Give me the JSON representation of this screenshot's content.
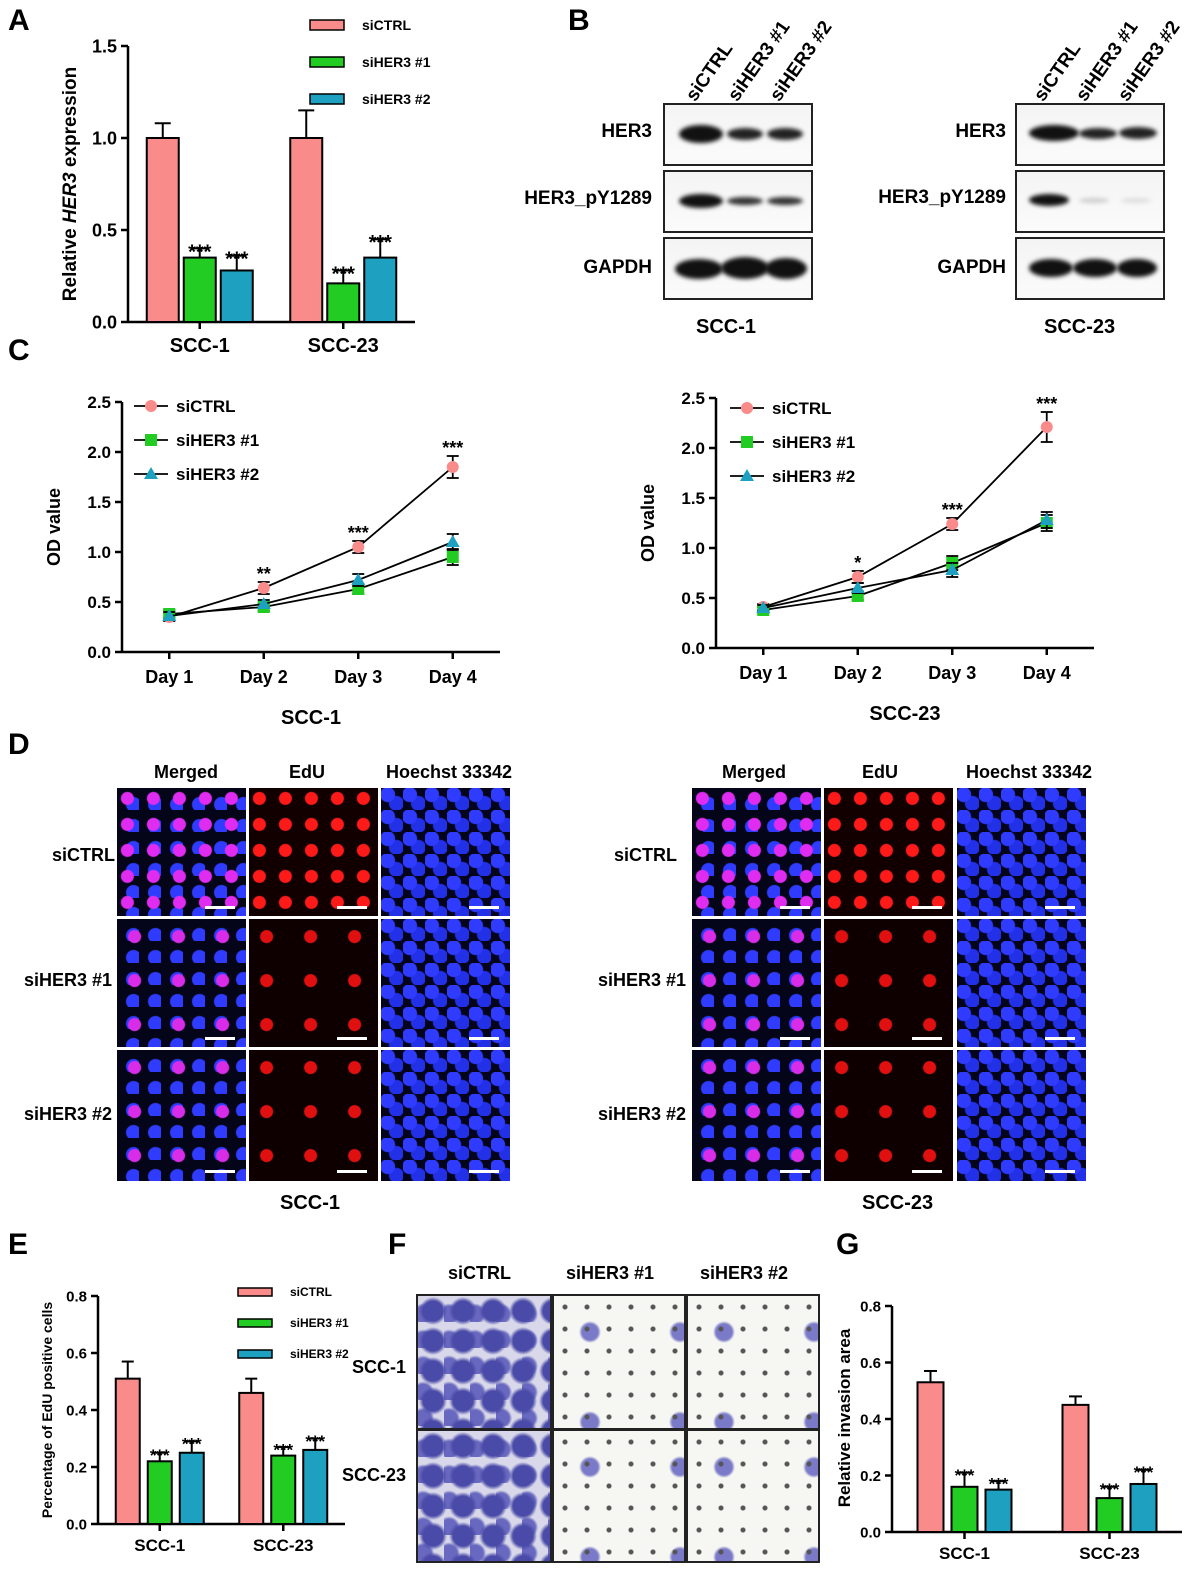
{
  "panels": {
    "a": "A",
    "b": "B",
    "c": "C",
    "d": "D",
    "e": "E",
    "f": "F",
    "g": "G"
  },
  "legend": {
    "ctrl": "siCTRL",
    "si1": "siHER3 #1",
    "si2": "siHER3 #2"
  },
  "colors": {
    "ctrl": "#f98b8b",
    "si1": "#22cc22",
    "si2": "#1ea0c0"
  },
  "chart_a": {
    "type": "bar",
    "ylabel_prefix": "Relative ",
    "ylabel_italic": "HER3",
    "ylabel_suffix": " expression",
    "categories": [
      "SCC-1",
      "SCC-23"
    ],
    "yticks": [
      "0.0",
      "0.5",
      "1.0",
      "1.5"
    ],
    "ylim": [
      0,
      1.5
    ],
    "series": [
      {
        "name": "siCTRL",
        "values": [
          1.0,
          1.0
        ],
        "errors": [
          0.08,
          0.15
        ]
      },
      {
        "name": "siHER3 #1",
        "values": [
          0.35,
          0.21
        ],
        "errors": [
          0.05,
          0.07
        ]
      },
      {
        "name": "siHER3 #2",
        "values": [
          0.28,
          0.35
        ],
        "errors": [
          0.08,
          0.1
        ]
      }
    ],
    "sig": [
      "***",
      "***",
      "***",
      "***"
    ]
  },
  "blot": {
    "lanes": [
      "siCTRL",
      "siHER3 #1",
      "siHER3 #2"
    ],
    "rows": [
      "HER3",
      "HER3_pY1289",
      "GAPDH"
    ],
    "cell1": "SCC-1",
    "cell2": "SCC-23"
  },
  "chart_c": {
    "type": "line",
    "ylabel": "OD value",
    "x": [
      "Day 1",
      "Day 2",
      "Day 3",
      "Day 4"
    ],
    "yticks": [
      "0.0",
      "0.5",
      "1.0",
      "1.5",
      "2.0",
      "2.5"
    ],
    "ylim": [
      0,
      2.5
    ],
    "left": {
      "title": "SCC-1",
      "series": [
        {
          "name": "siCTRL",
          "values": [
            0.35,
            0.64,
            1.05,
            1.85
          ],
          "errors": [
            0.04,
            0.06,
            0.06,
            0.11
          ]
        },
        {
          "name": "siHER3 #1",
          "values": [
            0.38,
            0.45,
            0.63,
            0.95
          ],
          "errors": [
            0.04,
            0.04,
            0.05,
            0.08
          ]
        },
        {
          "name": "siHER3 #2",
          "values": [
            0.36,
            0.48,
            0.72,
            1.1
          ],
          "errors": [
            0.04,
            0.04,
            0.06,
            0.08
          ]
        }
      ],
      "sig": [
        "",
        "**",
        "***",
        "***"
      ]
    },
    "right": {
      "title": "SCC-23",
      "series": [
        {
          "name": "siCTRL",
          "values": [
            0.41,
            0.71,
            1.24,
            2.21
          ],
          "errors": [
            0.03,
            0.06,
            0.06,
            0.15
          ]
        },
        {
          "name": "siHER3 #1",
          "values": [
            0.38,
            0.52,
            0.85,
            1.25
          ],
          "errors": [
            0.03,
            0.04,
            0.07,
            0.08
          ]
        },
        {
          "name": "siHER3 #2",
          "values": [
            0.4,
            0.6,
            0.78,
            1.28
          ],
          "errors": [
            0.03,
            0.05,
            0.07,
            0.08
          ]
        }
      ],
      "sig": [
        "",
        "*",
        "***",
        "***"
      ]
    }
  },
  "edu": {
    "cols": [
      "Merged",
      "EdU",
      "Hoechst 33342"
    ],
    "rows": [
      "siCTRL",
      "siHER3 #1",
      "siHER3 #2"
    ],
    "cell1": "SCC-1",
    "cell2": "SCC-23"
  },
  "chart_e": {
    "type": "bar",
    "ylabel": "Percentage of EdU positive cells",
    "categories": [
      "SCC-1",
      "SCC-23"
    ],
    "yticks": [
      "0.0",
      "0.2",
      "0.4",
      "0.6",
      "0.8"
    ],
    "ylim": [
      0,
      0.8
    ],
    "series": [
      {
        "name": "siCTRL",
        "values": [
          0.51,
          0.46
        ],
        "errors": [
          0.06,
          0.05
        ]
      },
      {
        "name": "siHER3 #1",
        "values": [
          0.22,
          0.24
        ],
        "errors": [
          0.03,
          0.03
        ]
      },
      {
        "name": "siHER3 #2",
        "values": [
          0.25,
          0.26
        ],
        "errors": [
          0.04,
          0.04
        ]
      }
    ],
    "sig": [
      "***",
      "***",
      "***",
      "***"
    ]
  },
  "invasion": {
    "cols": [
      "siCTRL",
      "siHER3 #1",
      "siHER3 #2"
    ],
    "rows": [
      "SCC-1",
      "SCC-23"
    ]
  },
  "chart_g": {
    "type": "bar",
    "ylabel": "Relative invasion area",
    "categories": [
      "SCC-1",
      "SCC-23"
    ],
    "yticks": [
      "0.0",
      "0.2",
      "0.4",
      "0.6",
      "0.8"
    ],
    "ylim": [
      0,
      0.8
    ],
    "series": [
      {
        "name": "siCTRL",
        "values": [
          0.53,
          0.45
        ],
        "errors": [
          0.04,
          0.03
        ]
      },
      {
        "name": "siHER3 #1",
        "values": [
          0.16,
          0.12
        ],
        "errors": [
          0.05,
          0.04
        ]
      },
      {
        "name": "siHER3 #2",
        "values": [
          0.15,
          0.17
        ],
        "errors": [
          0.03,
          0.05
        ]
      }
    ],
    "sig": [
      "***",
      "***",
      "***",
      "***"
    ]
  }
}
